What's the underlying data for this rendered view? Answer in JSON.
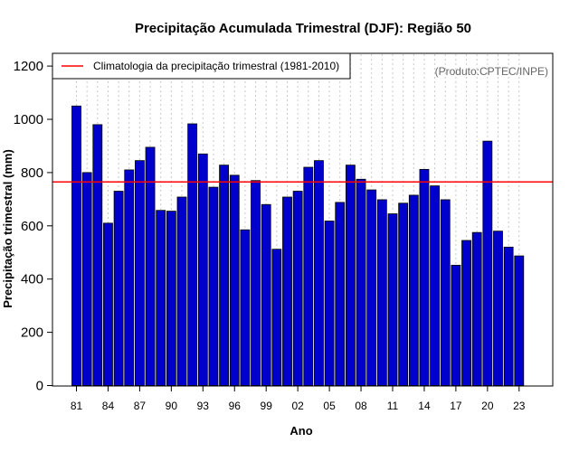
{
  "chart_data": {
    "type": "bar",
    "title": "Precipitação Acumulada Trimestral (DJF): Região 50",
    "xlabel": "Ano",
    "ylabel": "Precipitação trimestral (mm)",
    "ylim": [
      0,
      1250
    ],
    "y_ticks": [
      0,
      200,
      400,
      600,
      800,
      1000,
      1200
    ],
    "years": [
      1981,
      1982,
      1983,
      1984,
      1985,
      1986,
      1987,
      1988,
      1989,
      1990,
      1991,
      1992,
      1993,
      1994,
      1995,
      1996,
      1997,
      1998,
      1999,
      2000,
      2001,
      2002,
      2003,
      2004,
      2005,
      2006,
      2007,
      2008,
      2009,
      2010,
      2011,
      2012,
      2013,
      2014,
      2015,
      2016,
      2017,
      2018,
      2019,
      2020,
      2021,
      2022,
      2023
    ],
    "x_tick_labels": [
      "81",
      "84",
      "87",
      "90",
      "93",
      "96",
      "99",
      "02",
      "05",
      "08",
      "11",
      "14",
      "17",
      "20",
      "23"
    ],
    "x_tick_years": [
      1981,
      1984,
      1987,
      1990,
      1993,
      1996,
      1999,
      2002,
      2005,
      2008,
      2011,
      2014,
      2017,
      2020,
      2023
    ],
    "values": [
      1050,
      800,
      980,
      610,
      730,
      810,
      845,
      895,
      658,
      655,
      708,
      983,
      870,
      745,
      828,
      790,
      585,
      770,
      680,
      512,
      708,
      730,
      820,
      845,
      618,
      688,
      828,
      775,
      735,
      698,
      645,
      685,
      715,
      812,
      750,
      698,
      452,
      545,
      575,
      918,
      580,
      520,
      487
    ],
    "series_colors": {
      "bar_fill": "#0000cd",
      "bar_stroke": "#000000",
      "climatology": "#ff0000",
      "grid": "#c8c8c8"
    },
    "climatology_value": 765,
    "grid": true,
    "legend": {
      "position": "top-left",
      "entries": [
        {
          "label": "Climatologia da precipitação trimestral (1981-2010)",
          "color": "#ff0000"
        }
      ]
    },
    "annotation": "(Produto:CPTEC/INPE)"
  }
}
